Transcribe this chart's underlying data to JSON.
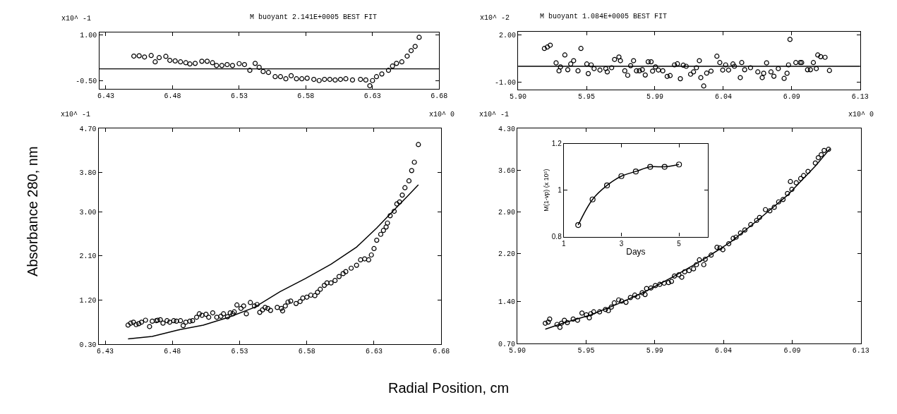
{
  "chart_data": [
    {
      "type": "scatter",
      "title": "M buoyant 2.141E+0005 BEST FIT",
      "annotations": [
        "x10^ -1"
      ],
      "xlim": [
        6.425,
        6.68
      ],
      "xticks": [
        6.43,
        6.48,
        6.53,
        6.58,
        6.63,
        6.68
      ],
      "ylim": [
        -0.78,
        1.09
      ],
      "yticks": [
        {
          "value": 1,
          "label": "1.00"
        },
        {
          "value": -0.5,
          "label": "-0.50"
        }
      ],
      "ref_lines": [
        {
          "axis": "y",
          "value": -0.11
        }
      ],
      "series": [
        {
          "marker": "circle",
          "color": "#000000",
          "x": [
            6.451,
            6.455,
            6.459,
            6.464,
            6.467,
            6.47,
            6.475,
            6.478,
            6.482,
            6.486,
            6.49,
            6.493,
            6.497,
            6.502,
            6.506,
            6.51,
            6.513,
            6.517,
            6.521,
            6.525,
            6.53,
            6.534,
            6.538,
            6.542,
            6.545,
            6.548,
            6.552,
            6.557,
            6.561,
            6.565,
            6.569,
            6.573,
            6.577,
            6.581,
            6.586,
            6.59,
            6.594,
            6.598,
            6.602,
            6.606,
            6.61,
            6.615,
            6.621,
            6.625,
            6.628,
            6.63,
            6.633,
            6.637,
            6.642,
            6.645,
            6.648,
            6.652,
            6.656,
            6.659,
            6.662,
            6.665
          ],
          "values": [
            0.31,
            0.32,
            0.28,
            0.33,
            0.12,
            0.26,
            0.3,
            0.17,
            0.15,
            0.12,
            0.09,
            0.05,
            0.07,
            0.14,
            0.14,
            0.09,
            0.0,
            0.0,
            0.03,
            0.0,
            0.06,
            0.03,
            -0.16,
            0.07,
            -0.06,
            -0.2,
            -0.23,
            -0.37,
            -0.37,
            -0.44,
            -0.34,
            -0.44,
            -0.44,
            -0.42,
            -0.46,
            -0.5,
            -0.46,
            -0.46,
            -0.48,
            -0.46,
            -0.44,
            -0.48,
            -0.46,
            -0.48,
            -0.67,
            -0.5,
            -0.37,
            -0.28,
            -0.16,
            -0.02,
            0.07,
            0.12,
            0.31,
            0.49,
            0.63,
            0.93
          ]
        }
      ]
    },
    {
      "type": "scatter",
      "title": "M buoyant 1.084E+0005 BEST FIT",
      "annotations": [
        "x10^ -2"
      ],
      "xlim": [
        5.9,
        6.134
      ],
      "xticks": [
        {
          "value": 5.9,
          "label": "5.90"
        },
        {
          "value": 5.9468,
          "label": "5.95"
        },
        {
          "value": 5.9936,
          "label": "5.99"
        },
        {
          "value": 6.0404,
          "label": "6.04"
        },
        {
          "value": 6.0872,
          "label": "6.09"
        },
        {
          "value": 6.134,
          "label": "6.13"
        }
      ],
      "ylim": [
        -1.51,
        2.22
      ],
      "yticks": [
        {
          "value": 2,
          "label": "2.00"
        },
        {
          "value": -1,
          "label": "-1.00"
        }
      ],
      "ref_lines": [
        {
          "axis": "y",
          "value": 0
        }
      ],
      "series": [
        {
          "marker": "circle",
          "color": "#000000",
          "x": [
            5.918,
            5.92,
            5.922,
            5.926,
            5.928,
            5.929,
            5.932,
            5.934,
            5.936,
            5.938,
            5.941,
            5.943,
            5.947,
            5.948,
            5.95,
            5.952,
            5.956,
            5.96,
            5.961,
            5.964,
            5.966,
            5.969,
            5.97,
            5.973,
            5.975,
            5.977,
            5.979,
            5.981,
            5.983,
            5.985,
            5.987,
            5.989,
            5.991,
            5.992,
            5.994,
            5.996,
            5.999,
            6.002,
            6.004,
            6.007,
            6.009,
            6.011,
            6.013,
            6.015,
            6.018,
            6.02,
            6.022,
            6.024,
            6.025,
            6.027,
            6.029,
            6.032,
            6.036,
            6.038,
            6.04,
            6.042,
            6.044,
            6.047,
            6.048,
            6.052,
            6.053,
            6.055,
            6.059,
            6.064,
            6.067,
            6.068,
            6.07,
            6.073,
            6.075,
            6.078,
            6.082,
            6.084,
            6.085,
            6.086,
            6.09,
            6.093,
            6.094,
            6.098,
            6.1,
            6.102,
            6.104,
            6.105,
            6.107,
            6.11,
            6.113
          ],
          "values": [
            1.15,
            1.24,
            1.36,
            0.22,
            -0.29,
            -0.04,
            0.73,
            -0.22,
            0.15,
            0.36,
            -0.29,
            1.15,
            0.15,
            -0.47,
            0.09,
            -0.15,
            -0.24,
            -0.15,
            -0.36,
            -0.09,
            0.44,
            0.6,
            0.36,
            -0.29,
            -0.58,
            0.04,
            0.36,
            -0.29,
            -0.29,
            -0.22,
            -0.56,
            0.29,
            0.29,
            -0.31,
            -0.04,
            -0.24,
            -0.29,
            -0.65,
            -0.6,
            0.09,
            0.16,
            -0.8,
            0.07,
            0.0,
            -0.51,
            -0.36,
            -0.09,
            0.36,
            -0.73,
            -1.27,
            -0.44,
            -0.31,
            0.65,
            0.24,
            -0.24,
            0.09,
            -0.24,
            0.15,
            0.0,
            -0.73,
            0.24,
            -0.22,
            -0.09,
            -0.36,
            -0.73,
            -0.45,
            0.22,
            -0.36,
            -0.64,
            -0.15,
            -0.78,
            -0.45,
            0.09,
            1.73,
            0.24,
            0.24,
            0.24,
            -0.22,
            -0.22,
            0.24,
            -0.15,
            0.73,
            0.62,
            0.58,
            -0.27
          ]
        }
      ]
    },
    {
      "type": "scatter",
      "annotations": [
        "x10^ -1",
        "x10^ 0"
      ],
      "ylabel": "Absorbance 280, nm",
      "xlabel": "Radial Position, cm",
      "xlim": [
        6.425,
        6.68
      ],
      "xticks": [
        6.43,
        6.48,
        6.53,
        6.58,
        6.63,
        6.68
      ],
      "ylim": [
        0.3,
        4.7
      ],
      "yticks": [
        {
          "value": 0.3,
          "label": "0.30"
        },
        {
          "value": 1.2,
          "label": "1.20"
        },
        {
          "value": 2.1,
          "label": "2.10"
        },
        {
          "value": 3,
          "label": "3.00"
        },
        {
          "value": 3.8,
          "label": "3.80"
        },
        {
          "value": 4.7,
          "label": "4.70"
        }
      ],
      "series": [
        {
          "marker": "circle",
          "color": "#000000",
          "x": [
            6.447,
            6.449,
            6.451,
            6.453,
            6.455,
            6.457,
            6.46,
            6.463,
            6.465,
            6.468,
            6.469,
            6.471,
            6.473,
            6.476,
            6.478,
            6.481,
            6.483,
            6.486,
            6.488,
            6.49,
            6.493,
            6.495,
            6.498,
            6.5,
            6.502,
            6.505,
            6.507,
            6.51,
            6.513,
            6.516,
            6.518,
            6.521,
            6.523,
            6.525,
            6.526,
            6.528,
            6.531,
            6.533,
            6.535,
            6.538,
            6.541,
            6.543,
            6.545,
            6.547,
            6.549,
            6.551,
            6.553,
            6.558,
            6.561,
            6.562,
            6.564,
            6.566,
            6.568,
            6.572,
            6.575,
            6.577,
            6.58,
            6.583,
            6.586,
            6.588,
            6.59,
            6.593,
            6.595,
            6.598,
            6.601,
            6.604,
            6.607,
            6.609,
            6.613,
            6.617,
            6.62,
            6.623,
            6.626,
            6.628,
            6.63,
            6.632,
            6.635,
            6.637,
            6.639,
            6.64,
            6.642,
            6.645,
            6.647,
            6.649,
            6.651,
            6.653,
            6.656,
            6.658,
            6.66,
            6.663
          ],
          "values": [
            0.69,
            0.73,
            0.75,
            0.7,
            0.72,
            0.75,
            0.79,
            0.66,
            0.77,
            0.78,
            0.79,
            0.8,
            0.73,
            0.78,
            0.75,
            0.78,
            0.77,
            0.78,
            0.68,
            0.75,
            0.77,
            0.78,
            0.85,
            0.92,
            0.89,
            0.91,
            0.85,
            0.94,
            0.85,
            0.87,
            0.92,
            0.86,
            0.94,
            0.92,
            0.96,
            1.1,
            1.03,
            1.08,
            0.92,
            1.15,
            1.08,
            1.11,
            0.95,
            1.0,
            1.05,
            1.03,
            0.99,
            1.05,
            1.03,
            0.98,
            1.08,
            1.16,
            1.18,
            1.13,
            1.17,
            1.24,
            1.26,
            1.3,
            1.29,
            1.36,
            1.42,
            1.5,
            1.55,
            1.55,
            1.6,
            1.68,
            1.74,
            1.78,
            1.85,
            1.91,
            2.02,
            2.04,
            2.02,
            2.12,
            2.25,
            2.42,
            2.54,
            2.62,
            2.69,
            2.77,
            2.92,
            3.01,
            3.16,
            3.2,
            3.34,
            3.49,
            3.63,
            3.84,
            4.01,
            4.37
          ]
        },
        {
          "type": "line",
          "marker": "none",
          "color": "#000000",
          "x": [
            6.447,
            6.465,
            6.484,
            6.503,
            6.522,
            6.541,
            6.56,
            6.579,
            6.598,
            6.617,
            6.632,
            6.644,
            6.655,
            6.663
          ],
          "values": [
            0.41,
            0.46,
            0.59,
            0.69,
            0.85,
            1.05,
            1.37,
            1.64,
            1.93,
            2.28,
            2.67,
            3.01,
            3.32,
            3.55
          ]
        }
      ]
    },
    {
      "type": "scatter",
      "annotations": [
        "x10^ -1",
        "x10^ 0"
      ],
      "xlim": [
        5.9,
        6.134
      ],
      "xticks": [
        {
          "value": 5.9,
          "label": "5.90"
        },
        {
          "value": 5.9468,
          "label": "5.95"
        },
        {
          "value": 5.9936,
          "label": "5.99"
        },
        {
          "value": 6.0404,
          "label": "6.04"
        },
        {
          "value": 6.0872,
          "label": "6.09"
        },
        {
          "value": 6.134,
          "label": "6.13"
        }
      ],
      "ylim": [
        0.7,
        4.3
      ],
      "yticks": [
        {
          "value": 0.7,
          "label": "0.70"
        },
        {
          "value": 1.4,
          "label": "1.40"
        },
        {
          "value": 2.2,
          "label": "2.20"
        },
        {
          "value": 2.9,
          "label": "2.90"
        },
        {
          "value": 3.6,
          "label": "3.60"
        },
        {
          "value": 4.3,
          "label": "4.30"
        }
      ],
      "series": [
        {
          "marker": "circle",
          "color": "#000000",
          "x": [
            5.919,
            5.921,
            5.922,
            5.927,
            5.929,
            5.93,
            5.932,
            5.934,
            5.938,
            5.941,
            5.944,
            5.947,
            5.949,
            5.95,
            5.952,
            5.956,
            5.96,
            5.962,
            5.964,
            5.966,
            5.969,
            5.971,
            5.974,
            5.977,
            5.98,
            5.982,
            5.985,
            5.987,
            5.988,
            5.991,
            5.994,
            5.997,
            6.0,
            6.003,
            6.005,
            6.007,
            6.01,
            6.012,
            6.014,
            6.017,
            6.02,
            6.022,
            6.024,
            6.027,
            6.028,
            6.032,
            6.036,
            6.038,
            6.04,
            6.044,
            6.047,
            6.049,
            6.052,
            6.055,
            6.059,
            6.063,
            6.065,
            6.069,
            6.072,
            6.075,
            6.078,
            6.081,
            6.084,
            6.086,
            6.087,
            6.09,
            6.093,
            6.095,
            6.098,
            6.103,
            6.105,
            6.107,
            6.109,
            6.112
          ],
          "values": [
            1.04,
            1.06,
            1.11,
            1.02,
            0.97,
            1.04,
            1.09,
            1.05,
            1.11,
            1.09,
            1.21,
            1.18,
            1.13,
            1.2,
            1.23,
            1.23,
            1.27,
            1.25,
            1.31,
            1.38,
            1.43,
            1.41,
            1.39,
            1.47,
            1.51,
            1.48,
            1.55,
            1.52,
            1.62,
            1.63,
            1.67,
            1.69,
            1.71,
            1.72,
            1.74,
            1.83,
            1.85,
            1.81,
            1.9,
            1.92,
            1.95,
            2.02,
            2.1,
            2.02,
            2.11,
            2.18,
            2.31,
            2.3,
            2.27,
            2.37,
            2.46,
            2.48,
            2.55,
            2.6,
            2.69,
            2.76,
            2.81,
            2.94,
            2.92,
            2.98,
            3.07,
            3.11,
            3.21,
            3.41,
            3.28,
            3.39,
            3.46,
            3.51,
            3.58,
            3.72,
            3.81,
            3.86,
            3.93,
            3.95
          ]
        },
        {
          "type": "line",
          "marker": "none",
          "color": "#000000",
          "x": [
            5.919,
            5.931,
            5.95,
            5.969,
            5.988,
            6.007,
            6.027,
            6.046,
            6.065,
            6.084,
            6.103,
            6.113
          ],
          "values": [
            0.94,
            1.04,
            1.18,
            1.37,
            1.58,
            1.83,
            2.11,
            2.41,
            2.79,
            3.18,
            3.67,
            3.96
          ]
        }
      ]
    },
    {
      "type": "line",
      "xlabel": "Days",
      "ylabel": "M(1-vp) (x 10⁵)",
      "xlim": [
        1,
        6
      ],
      "xticks": [
        1,
        3,
        5
      ],
      "ylim": [
        0.8,
        1.2
      ],
      "yticks": [
        0.8,
        1,
        1.2
      ],
      "series": [
        {
          "marker": "circle",
          "color": "#000000",
          "x": [
            1.5,
            2,
            2.5,
            3,
            3.5,
            4,
            4.5,
            5
          ],
          "values": [
            0.85,
            0.96,
            1.02,
            1.06,
            1.08,
            1.1,
            1.1,
            1.11
          ]
        }
      ]
    }
  ]
}
